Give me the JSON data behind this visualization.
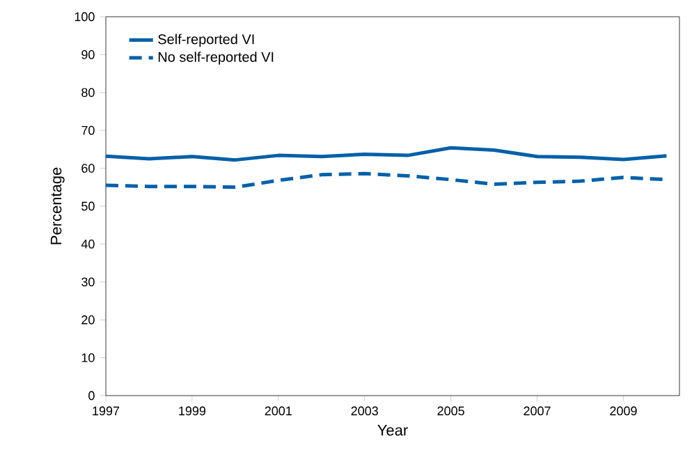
{
  "chart_data": {
    "type": "line",
    "xlabel": "Year",
    "ylabel": "Percentage",
    "x": [
      1997,
      1998,
      1999,
      2000,
      2001,
      2002,
      2003,
      2004,
      2005,
      2006,
      2007,
      2008,
      2009,
      2010
    ],
    "series": [
      {
        "name": "Self-reported VI",
        "color": "#0060a8",
        "line_style": "solid",
        "values": [
          63.2,
          62.5,
          63.1,
          62.2,
          63.4,
          63.1,
          63.7,
          63.4,
          65.4,
          64.8,
          63.1,
          62.9,
          62.3,
          63.3
        ]
      },
      {
        "name": "No self-reported VI",
        "color": "#0060a8",
        "line_style": "dashed",
        "values": [
          55.5,
          55.2,
          55.2,
          55.0,
          56.8,
          58.3,
          58.6,
          58.0,
          57.0,
          55.8,
          56.3,
          56.6,
          57.6,
          57.0
        ]
      }
    ],
    "xlim": [
      1997,
      2010.3
    ],
    "xticks": [
      1997,
      1999,
      2001,
      2003,
      2005,
      2007,
      2009
    ],
    "ylim": [
      0,
      100
    ],
    "yticks": [
      0,
      10,
      20,
      30,
      40,
      50,
      60,
      70,
      80,
      90,
      100
    ],
    "legend": "top left",
    "grid": false,
    "marker": "none"
  }
}
